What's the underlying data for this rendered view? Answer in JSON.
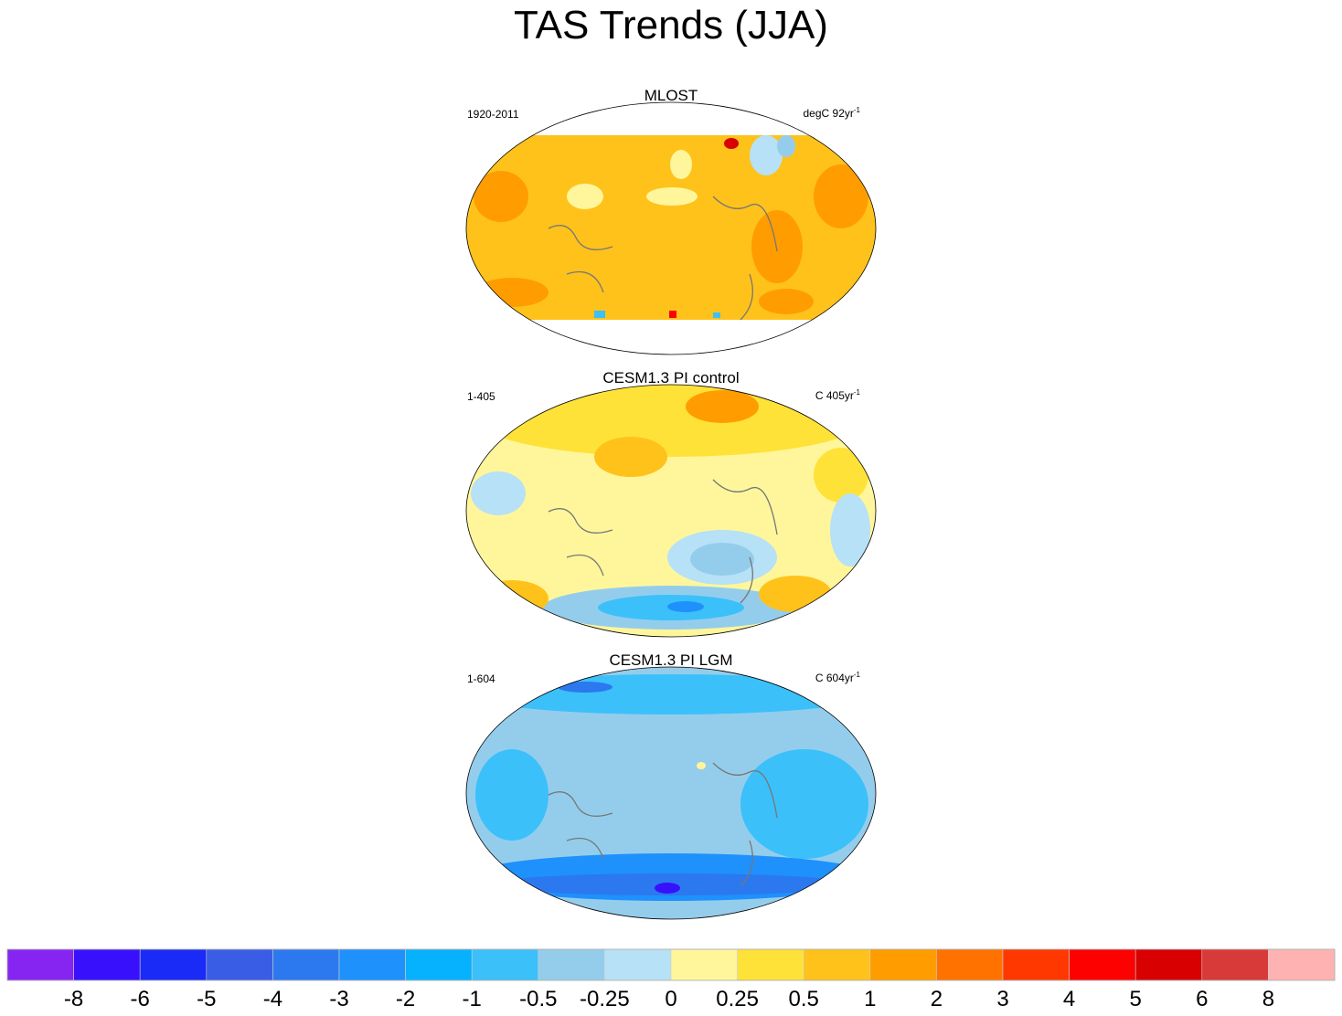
{
  "title": "TAS Trends (JJA)",
  "chart_data": {
    "type": "heatmap",
    "title": "TAS Trends (JJA)",
    "panels": [
      {
        "name": "MLOST",
        "period": "1920-2011",
        "units_prefix": "degC 92yr",
        "units_exp": "-1",
        "dominant_range": [
          0.5,
          1
        ],
        "background_color": "#ffc21b"
      },
      {
        "name": "CESM1.3 PI control",
        "period": "1-405",
        "units_prefix": "C 405yr",
        "units_exp": "-1",
        "dominant_range": [
          0,
          0.25
        ],
        "background_color": "#fff69c"
      },
      {
        "name": "CESM1.3 PI LGM",
        "period": "1-604",
        "units_prefix": "C 604yr",
        "units_exp": "-1",
        "dominant_range": [
          -0.5,
          -0.25
        ],
        "background_color": "#94cdec"
      }
    ],
    "colorbar": {
      "labels": [
        "-8",
        "-6",
        "-5",
        "-4",
        "-3",
        "-2",
        "-1",
        "-0.5",
        "-0.25",
        "0",
        "0.25",
        "0.5",
        "1",
        "2",
        "3",
        "4",
        "5",
        "6",
        "8"
      ],
      "colors": [
        "#8625f2",
        "#3810fc",
        "#1a2af7",
        "#3a5de6",
        "#2c78ef",
        "#1e91fc",
        "#06b1fd",
        "#3bc0fa",
        "#94cdec",
        "#b6e1f6",
        "#fff69c",
        "#ffe238",
        "#ffc21b",
        "#ff9d00",
        "#ff7200",
        "#ff3800",
        "#fd0000",
        "#d80000",
        "#d83a3a",
        "#ffb2b2"
      ]
    }
  }
}
